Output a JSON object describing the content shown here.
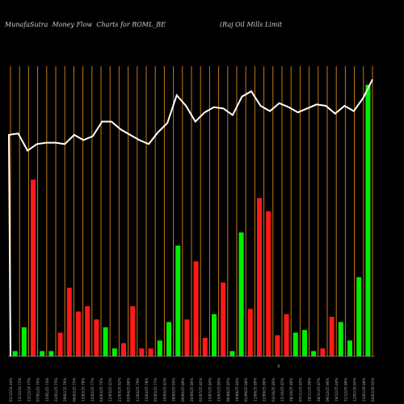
{
  "header": {
    "left_title": "MunafaSutra  Money Flow  Charts for ROML_BE",
    "right_title": "(Raj Oil Mills Limit"
  },
  "chart_data": {
    "type": "bar",
    "title": "MunafaSutra  Money Flow  Charts for ROML_BE",
    "subtitle": "(Raj Oil Mills Limit",
    "xlabel": "",
    "ylabel": "",
    "colors": {
      "background": "#000000",
      "grid": "#c87814",
      "up_bar": "#00ee00",
      "down_bar": "#ff1a1a",
      "line": "#ffffff",
      "axis": "#888888",
      "tick_text": "#aaaaaa"
    },
    "grid": true,
    "categories": [
      "01/12/24 44%",
      "13/12/24 72%",
      "23/12/24 77%",
      "07/01/25 76%",
      "15/01/25 74%",
      "22/01/25 75%",
      "29/01/25 76%",
      "06/02/25 75%",
      "13/02/25 78%",
      "24/02/25 77%",
      "04/03/25 76%",
      "12/03/25 81%",
      "21/03/25 82%",
      "02/04/25 80%",
      "11/04/25 79%",
      "23/04/25 78%",
      "05/05/25 77%",
      "16/05/25 81%",
      "28/05/25 83%",
      "09/06/25 89%",
      "20/06/25 86%",
      "02/07/25 82%",
      "15/07/25 84%",
      "25/07/25 85%",
      "06/08/25 85%",
      "19/08/25 84%",
      "01/09/25 88%",
      "11/09/25 89%",
      "22/09/25 86%",
      "03/10/25 85%",
      "15/10/25 87%",
      "28/10/25 86%",
      "07/11/25 85%",
      "18/11/25 86%",
      "28/11/25 87%",
      "09/12/25 86%",
      "19/12/25 84%",
      "31/12/25 86%",
      "12/01/26 85%",
      "23/01/26 88%",
      "04/02/26 92%"
    ],
    "bars": [
      {
        "dir": "up",
        "value": 2
      },
      {
        "dir": "up",
        "value": 11
      },
      {
        "dir": "down",
        "value": 67
      },
      {
        "dir": "up",
        "value": 2
      },
      {
        "dir": "up",
        "value": 2
      },
      {
        "dir": "down",
        "value": 9
      },
      {
        "dir": "down",
        "value": 26
      },
      {
        "dir": "down",
        "value": 17
      },
      {
        "dir": "down",
        "value": 19
      },
      {
        "dir": "down",
        "value": 14
      },
      {
        "dir": "up",
        "value": 11
      },
      {
        "dir": "up",
        "value": 3
      },
      {
        "dir": "down",
        "value": 5
      },
      {
        "dir": "down",
        "value": 19
      },
      {
        "dir": "down",
        "value": 3
      },
      {
        "dir": "down",
        "value": 3
      },
      {
        "dir": "up",
        "value": 6
      },
      {
        "dir": "up",
        "value": 13
      },
      {
        "dir": "up",
        "value": 42
      },
      {
        "dir": "down",
        "value": 14
      },
      {
        "dir": "down",
        "value": 36
      },
      {
        "dir": "down",
        "value": 7
      },
      {
        "dir": "up",
        "value": 16
      },
      {
        "dir": "down",
        "value": 28
      },
      {
        "dir": "up",
        "value": 2
      },
      {
        "dir": "up",
        "value": 47
      },
      {
        "dir": "down",
        "value": 18
      },
      {
        "dir": "down",
        "value": 60
      },
      {
        "dir": "down",
        "value": 55
      },
      {
        "dir": "down",
        "value": 8
      },
      {
        "dir": "down",
        "value": 16
      },
      {
        "dir": "up",
        "value": 9
      },
      {
        "dir": "up",
        "value": 10
      },
      {
        "dir": "up",
        "value": 2
      },
      {
        "dir": "down",
        "value": 3
      },
      {
        "dir": "down",
        "value": 15
      },
      {
        "dir": "up",
        "value": 13
      },
      {
        "dir": "up",
        "value": 6
      },
      {
        "dir": "up",
        "value": 30
      },
      {
        "dir": "up",
        "value": 103
      }
    ],
    "bar_ylim": [
      0,
      110
    ],
    "line": {
      "name": "",
      "values": [
        84,
        84.5,
        78,
        80.5,
        81,
        81,
        80.5,
        84,
        82,
        83.5,
        89,
        89,
        86,
        84,
        82,
        80.5,
        85,
        88.5,
        99,
        95,
        89,
        92.5,
        94.5,
        94,
        91.5,
        98.5,
        100.5,
        95,
        93,
        96,
        94.5,
        92.5,
        94,
        95.5,
        95,
        92,
        95,
        93,
        98,
        105
      ]
    },
    "line_ylim": [
      0,
      110
    ],
    "axis_marker": "0"
  }
}
